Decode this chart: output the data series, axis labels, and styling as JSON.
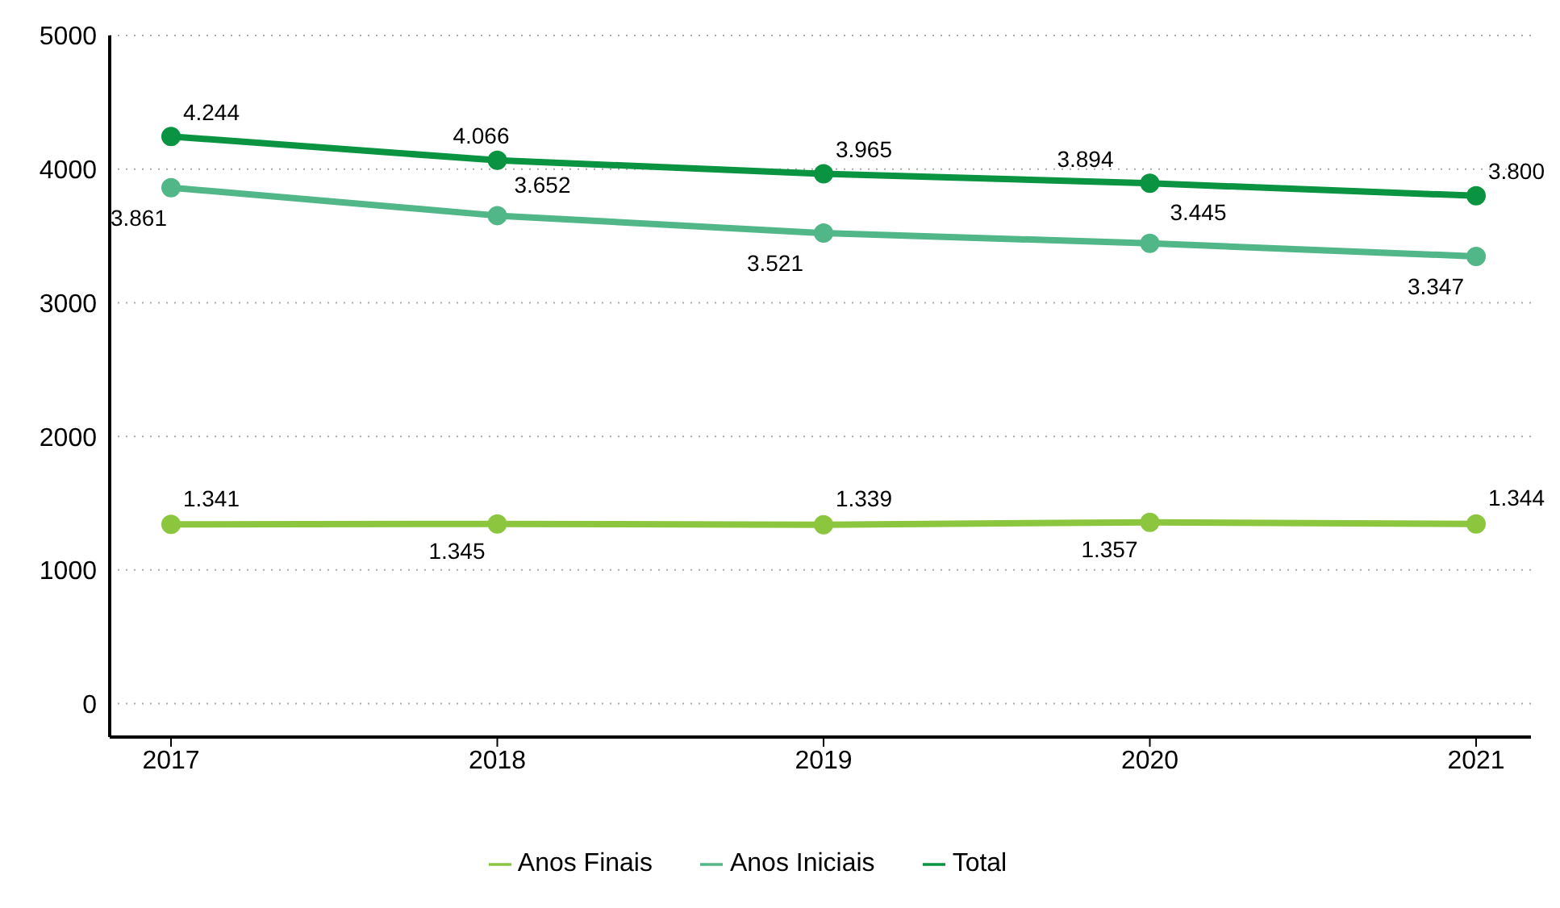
{
  "chart_data": {
    "type": "line",
    "categories": [
      "2017",
      "2018",
      "2019",
      "2020",
      "2021"
    ],
    "series": [
      {
        "name": "Total",
        "color": "#0a9441",
        "values": [
          4244,
          4066,
          3965,
          3894,
          3800
        ],
        "value_labels": [
          "4.244",
          "4.066",
          "3.965",
          "3.894",
          "3.800"
        ]
      },
      {
        "name": "Anos Iniciais",
        "color": "#52b788",
        "values": [
          3861,
          3652,
          3521,
          3445,
          3347
        ],
        "value_labels": [
          "3.861",
          "3.652",
          "3.521",
          "3.445",
          "3.347"
        ]
      },
      {
        "name": "Anos Finais",
        "color": "#8cc63f",
        "values": [
          1341,
          1345,
          1339,
          1357,
          1344
        ],
        "value_labels": [
          "1.341",
          "1.345",
          "1.339",
          "1.357",
          "1.344"
        ]
      }
    ],
    "ylim": [
      -250,
      5000
    ],
    "yticks": [
      0,
      1000,
      2000,
      3000,
      4000,
      5000
    ],
    "grid": "y",
    "legend": "bottom",
    "marker": "circle",
    "line_style": "solid"
  }
}
